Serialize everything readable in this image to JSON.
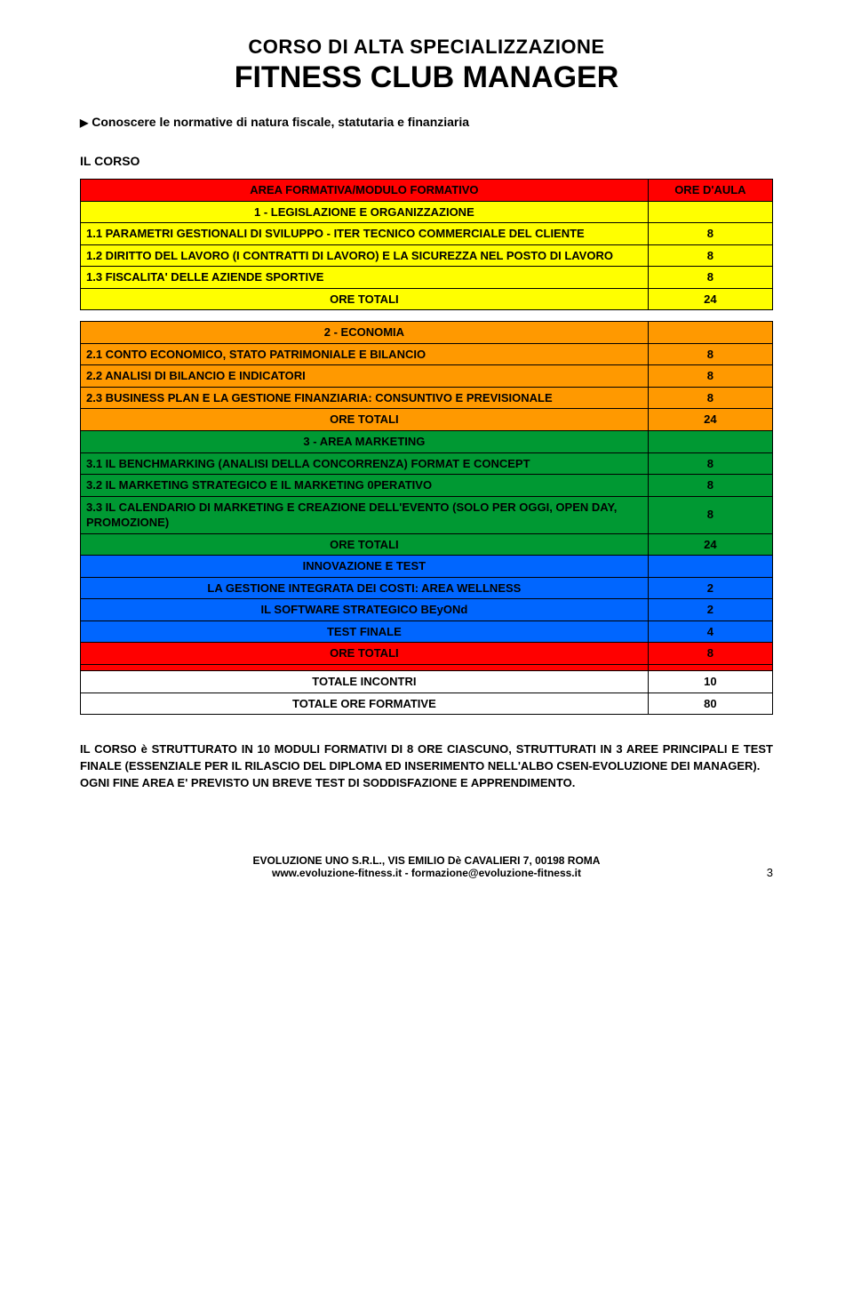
{
  "header": {
    "title1": "CORSO DI ALTA SPECIALIZZAZIONE",
    "title2": "FITNESS CLUB MANAGER",
    "bullet": "Conoscere le normative di natura fiscale, statutaria e finanziaria",
    "section_label": "IL CORSO"
  },
  "colors": {
    "red": "#ff0000",
    "yellow": "#ffff00",
    "orange": "#ff9900",
    "green": "#009933",
    "blue": "#0066ff",
    "white": "#ffffff"
  },
  "table": {
    "head1": {
      "label": "AREA FORMATIVA/MODULO FORMATIVO",
      "val": "ORE D'AULA",
      "bg": "red"
    },
    "s1_title": {
      "label": "1 - LEGISLAZIONE E ORGANIZZAZIONE",
      "bg": "yellow"
    },
    "r1_1": {
      "label": "1.1 PARAMETRI GESTIONALI DI SVILUPPO - ITER TECNICO COMMERCIALE DEL CLIENTE",
      "val": "8",
      "bg": "yellow"
    },
    "r1_2": {
      "label": "1.2 DIRITTO DEL LAVORO (I CONTRATTI DI LAVORO) E LA SICUREZZA NEL POSTO DI LAVORO",
      "val": "8",
      "bg": "yellow"
    },
    "r1_3": {
      "label": "1.3 FISCALITA' DELLE AZIENDE SPORTIVE",
      "val": "8",
      "bg": "yellow"
    },
    "r1_tot": {
      "label": "ORE TOTALI",
      "val": "24",
      "bg": "yellow"
    },
    "s2_title": {
      "label": "2 - ECONOMIA",
      "bg": "orange"
    },
    "r2_1": {
      "label": "2.1 CONTO ECONOMICO, STATO PATRIMONIALE E BILANCIO",
      "val": "8",
      "bg": "orange"
    },
    "r2_2": {
      "label": "2.2  ANALISI DI BILANCIO E INDICATORI",
      "val": "8",
      "bg": "orange"
    },
    "r2_3": {
      "label": "2.3 BUSINESS PLAN E LA GESTIONE FINANZIARIA: CONSUNTIVO E PREVISIONALE",
      "val": "8",
      "bg": "orange"
    },
    "r2_tot": {
      "label": "ORE TOTALI",
      "val": "24",
      "bg": "orange"
    },
    "s3_title": {
      "label": "3 - AREA MARKETING",
      "bg": "green"
    },
    "r3_1": {
      "label": "3.1 IL BENCHMARKING (ANALISI DELLA CONCORRENZA) FORMAT E CONCEPT",
      "val": "8",
      "bg": "green"
    },
    "r3_2": {
      "label": "3.2 IL MARKETING STRATEGICO E IL MARKETING 0PERATIVO",
      "val": "8",
      "bg": "green"
    },
    "r3_3": {
      "label": "3.3 IL CALENDARIO DI MARKETING E  CREAZIONE DELL'EVENTO (SOLO PER OGGI, OPEN DAY, PROMOZIONE)",
      "val": "8",
      "bg": "green"
    },
    "r3_tot": {
      "label": "ORE TOTALI",
      "val": "24",
      "bg": "green"
    },
    "s4_title": {
      "label": "INNOVAZIONE E TEST",
      "bg": "blue"
    },
    "r4_1": {
      "label": "LA GESTIONE INTEGRATA DEI COSTI: AREA WELLNESS",
      "val": "2",
      "bg": "blue"
    },
    "r4_2": {
      "label": "IL SOFTWARE STRATEGICO BEyONd",
      "val": "2",
      "bg": "blue"
    },
    "r4_3": {
      "label": "TEST FINALE",
      "val": "4",
      "bg": "blue"
    },
    "r4_tot": {
      "label": "ORE TOTALI",
      "val": "8",
      "bg": "red"
    },
    "emptyrow": {
      "bg": "red"
    },
    "g1": {
      "label": "TOTALE INCONTRI",
      "val": "10",
      "bg": "white"
    },
    "g2": {
      "label": "TOTALE ORE FORMATIVE",
      "val": "80",
      "bg": "white"
    }
  },
  "body": {
    "p1": "IL CORSO è STRUTTURATO IN 10 MODULI FORMATIVI DI 8 ORE CIASCUNO, STRUTTURATI IN 3 AREE PRINCIPALI E TEST FINALE (ESSENZIALE PER IL RILASCIO DEL DIPLOMA ED INSERIMENTO NELL'ALBO CSEN-EVOLUZIONE DEI MANAGER).",
    "p2": "OGNI FINE AREA E' PREVISTO UN BREVE TEST DI SODDISFAZIONE E APPRENDIMENTO."
  },
  "footer": {
    "line1": "EVOLUZIONE UNO S.R.L., VIS EMILIO Dè CAVALIERI 7, 00198 ROMA",
    "line2": "www.evoluzione-fitness.it - formazione@evoluzione-fitness.it",
    "page": "3"
  }
}
